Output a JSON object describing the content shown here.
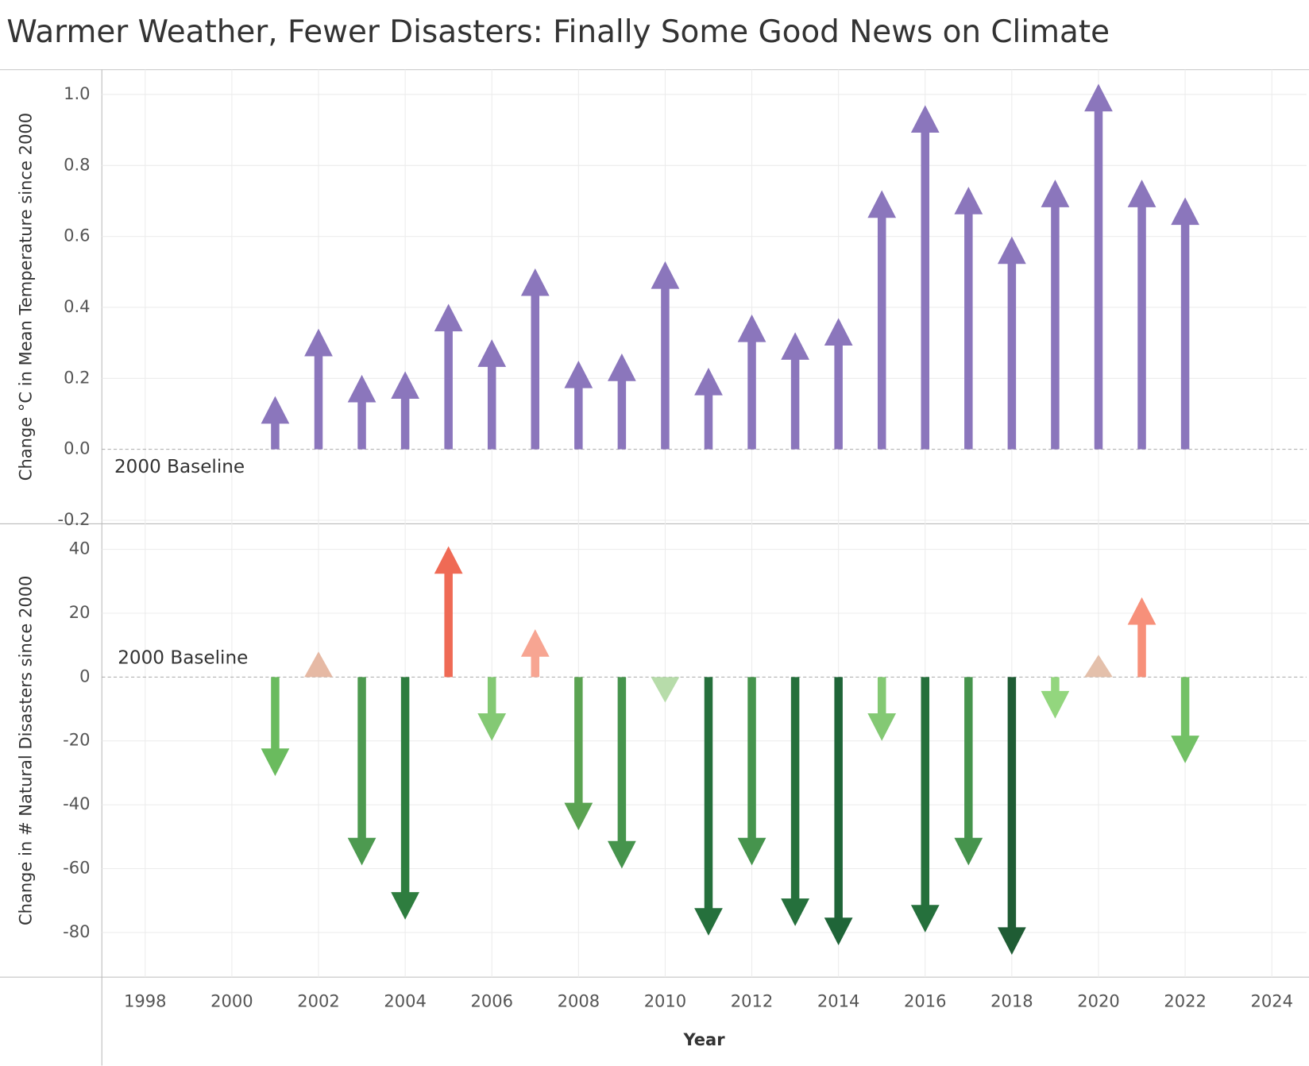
{
  "chart_data": [
    {
      "type": "arrow",
      "title": "Warmer Weather, Fewer Disasters: Finally Some Good News on Climate",
      "y_label": "Change °C in Mean Temperature since 2000",
      "annotation": "2000 Baseline",
      "x": [
        2001,
        2002,
        2003,
        2004,
        2005,
        2006,
        2007,
        2008,
        2009,
        2010,
        2011,
        2012,
        2013,
        2014,
        2015,
        2016,
        2017,
        2018,
        2019,
        2020,
        2021,
        2022
      ],
      "series": [
        {
          "color": "#8b76bc",
          "values": [
            0.15,
            0.34,
            0.21,
            0.22,
            0.41,
            0.31,
            0.51,
            0.25,
            0.27,
            0.53,
            0.23,
            0.38,
            0.33,
            0.37,
            0.73,
            0.97,
            0.74,
            0.6,
            0.76,
            1.03,
            0.76,
            0.71
          ]
        }
      ],
      "xlim": [
        1997,
        2024.8
      ],
      "xticks": [
        1998,
        2000,
        2002,
        2004,
        2006,
        2008,
        2010,
        2012,
        2014,
        2016,
        2018,
        2020,
        2022,
        2024
      ],
      "ylim": [
        -0.21,
        1.07
      ],
      "yticks": [
        {
          "value": 1,
          "label": "1.0"
        },
        0.8,
        0.6,
        0.4,
        0.2,
        {
          "value": 0,
          "label": "0.0"
        },
        -0.2
      ],
      "grid": true
    },
    {
      "type": "arrow",
      "y_label": "Change in # Natural Disasters since 2000",
      "x_label": "Year",
      "annotation": "2000 Baseline",
      "x": [
        2001,
        2002,
        2003,
        2004,
        2005,
        2006,
        2007,
        2008,
        2009,
        2010,
        2011,
        2012,
        2013,
        2014,
        2015,
        2016,
        2017,
        2018,
        2019,
        2020,
        2021,
        2022
      ],
      "series": [
        {
          "values": [
            -31,
            8,
            -59,
            -76,
            41,
            -20,
            15,
            -48,
            -60,
            -8,
            -81,
            -59,
            -78,
            -84,
            -20,
            -80,
            -59,
            -87,
            -13,
            7,
            25,
            -27
          ],
          "colors": [
            "#6abb5e",
            "#e6b9a4",
            "#4d9a50",
            "#2e7d3f",
            "#ef6a55",
            "#84c974",
            "#f7a592",
            "#5ba352",
            "#46944d",
            "#b7dcaa",
            "#25703c",
            "#46944d",
            "#25703c",
            "#1f6538",
            "#84c974",
            "#25703c",
            "#46944d",
            "#1f5c34",
            "#93d67e",
            "#e4c0ab",
            "#f7907a",
            "#73c166"
          ]
        }
      ],
      "xlim": [
        1997,
        2024.8
      ],
      "xticks": [
        1998,
        2000,
        2002,
        2004,
        2006,
        2008,
        2010,
        2012,
        2014,
        2016,
        2018,
        2020,
        2022,
        2024
      ],
      "ylim": [
        -94,
        48
      ],
      "yticks": [
        40,
        20,
        0,
        -20,
        -40,
        -60,
        -80
      ],
      "grid": true
    }
  ]
}
